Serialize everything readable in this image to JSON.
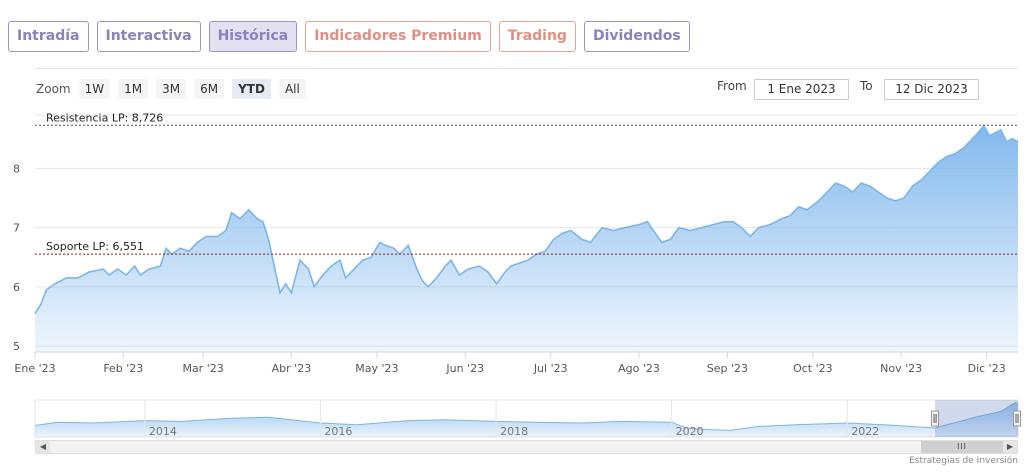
{
  "tabs": [
    {
      "label": "Intradía",
      "name": "tab-intradia",
      "style": "normal"
    },
    {
      "label": "Interactiva",
      "name": "tab-interactiva",
      "style": "normal"
    },
    {
      "label": "Histórica",
      "name": "tab-historica",
      "style": "active"
    },
    {
      "label": "Indicadores Premium",
      "name": "tab-indicadores-premium",
      "style": "premium"
    },
    {
      "label": "Trading",
      "name": "tab-trading",
      "style": "premium"
    },
    {
      "label": "Dividendos",
      "name": "tab-dividendos",
      "style": "normal"
    }
  ],
  "zoom": {
    "label": "Zoom",
    "buttons": [
      "1W",
      "1M",
      "3M",
      "6M",
      "YTD",
      "All"
    ],
    "selected": "YTD"
  },
  "range": {
    "from_label": "From",
    "from_value": "1 Ene 2023",
    "to_label": "To",
    "to_value": "12 Dic 2023"
  },
  "credit": "Estrategias de Inversión",
  "chart_data": {
    "type": "area",
    "x_start": "2023-01-01",
    "x_end": "2023-12-12",
    "ylim": [
      4.9,
      8.9
    ],
    "y_ticks": [
      5,
      6,
      7,
      8
    ],
    "x_tick_labels": [
      {
        "label": "Ene '23",
        "date": "2023-01-01"
      },
      {
        "label": "Feb '23",
        "date": "2023-02-01"
      },
      {
        "label": "Mar '23",
        "date": "2023-03-01"
      },
      {
        "label": "Abr '23",
        "date": "2023-04-01"
      },
      {
        "label": "May '23",
        "date": "2023-05-01"
      },
      {
        "label": "Jun '23",
        "date": "2023-06-01"
      },
      {
        "label": "Jul '23",
        "date": "2023-07-01"
      },
      {
        "label": "Ago '23",
        "date": "2023-08-01"
      },
      {
        "label": "Sep '23",
        "date": "2023-09-01"
      },
      {
        "label": "Oct '23",
        "date": "2023-10-01"
      },
      {
        "label": "Nov '23",
        "date": "2023-11-01"
      },
      {
        "label": "Dic '23",
        "date": "2023-12-01"
      }
    ],
    "grid": true,
    "series": [
      {
        "color": "#7cb5ec",
        "points": [
          [
            "2023-01-01",
            5.55
          ],
          [
            "2023-01-03",
            5.7
          ],
          [
            "2023-01-05",
            5.95
          ],
          [
            "2023-01-08",
            6.05
          ],
          [
            "2023-01-12",
            6.15
          ],
          [
            "2023-01-16",
            6.15
          ],
          [
            "2023-01-20",
            6.25
          ],
          [
            "2023-01-25",
            6.3
          ],
          [
            "2023-01-27",
            6.2
          ],
          [
            "2023-01-30",
            6.3
          ],
          [
            "2023-02-02",
            6.2
          ],
          [
            "2023-02-05",
            6.35
          ],
          [
            "2023-02-07",
            6.2
          ],
          [
            "2023-02-10",
            6.3
          ],
          [
            "2023-02-14",
            6.35
          ],
          [
            "2023-02-16",
            6.65
          ],
          [
            "2023-02-18",
            6.55
          ],
          [
            "2023-02-21",
            6.65
          ],
          [
            "2023-02-24",
            6.6
          ],
          [
            "2023-02-27",
            6.75
          ],
          [
            "2023-03-02",
            6.85
          ],
          [
            "2023-03-06",
            6.85
          ],
          [
            "2023-03-09",
            6.95
          ],
          [
            "2023-03-11",
            7.25
          ],
          [
            "2023-03-14",
            7.15
          ],
          [
            "2023-03-17",
            7.3
          ],
          [
            "2023-03-20",
            7.15
          ],
          [
            "2023-03-22",
            7.1
          ],
          [
            "2023-03-24",
            6.8
          ],
          [
            "2023-03-26",
            6.35
          ],
          [
            "2023-03-28",
            5.9
          ],
          [
            "2023-03-30",
            6.05
          ],
          [
            "2023-04-01",
            5.9
          ],
          [
            "2023-04-04",
            6.45
          ],
          [
            "2023-04-07",
            6.3
          ],
          [
            "2023-04-09",
            6.0
          ],
          [
            "2023-04-12",
            6.2
          ],
          [
            "2023-04-15",
            6.35
          ],
          [
            "2023-04-18",
            6.45
          ],
          [
            "2023-04-20",
            6.15
          ],
          [
            "2023-04-23",
            6.3
          ],
          [
            "2023-04-26",
            6.45
          ],
          [
            "2023-04-29",
            6.5
          ],
          [
            "2023-05-02",
            6.75
          ],
          [
            "2023-05-04",
            6.7
          ],
          [
            "2023-05-07",
            6.65
          ],
          [
            "2023-05-09",
            6.55
          ],
          [
            "2023-05-12",
            6.7
          ],
          [
            "2023-05-15",
            6.3
          ],
          [
            "2023-05-17",
            6.1
          ],
          [
            "2023-05-19",
            6.0
          ],
          [
            "2023-05-22",
            6.15
          ],
          [
            "2023-05-25",
            6.35
          ],
          [
            "2023-05-27",
            6.45
          ],
          [
            "2023-05-30",
            6.2
          ],
          [
            "2023-06-02",
            6.3
          ],
          [
            "2023-06-06",
            6.35
          ],
          [
            "2023-06-09",
            6.25
          ],
          [
            "2023-06-12",
            6.05
          ],
          [
            "2023-06-15",
            6.25
          ],
          [
            "2023-06-17",
            6.35
          ],
          [
            "2023-06-20",
            6.4
          ],
          [
            "2023-06-23",
            6.45
          ],
          [
            "2023-06-26",
            6.55
          ],
          [
            "2023-06-29",
            6.6
          ],
          [
            "2023-07-02",
            6.8
          ],
          [
            "2023-07-05",
            6.9
          ],
          [
            "2023-07-08",
            6.95
          ],
          [
            "2023-07-12",
            6.8
          ],
          [
            "2023-07-15",
            6.75
          ],
          [
            "2023-07-19",
            7.0
          ],
          [
            "2023-07-23",
            6.95
          ],
          [
            "2023-07-27",
            7.0
          ],
          [
            "2023-08-01",
            7.05
          ],
          [
            "2023-08-04",
            7.1
          ],
          [
            "2023-08-06",
            6.95
          ],
          [
            "2023-08-09",
            6.75
          ],
          [
            "2023-08-12",
            6.8
          ],
          [
            "2023-08-15",
            7.0
          ],
          [
            "2023-08-19",
            6.95
          ],
          [
            "2023-08-23",
            7.0
          ],
          [
            "2023-08-27",
            7.05
          ],
          [
            "2023-08-31",
            7.1
          ],
          [
            "2023-09-03",
            7.1
          ],
          [
            "2023-09-06",
            7.0
          ],
          [
            "2023-09-09",
            6.85
          ],
          [
            "2023-09-12",
            7.0
          ],
          [
            "2023-09-16",
            7.05
          ],
          [
            "2023-09-20",
            7.15
          ],
          [
            "2023-09-23",
            7.2
          ],
          [
            "2023-09-26",
            7.35
          ],
          [
            "2023-09-29",
            7.3
          ],
          [
            "2023-10-03",
            7.45
          ],
          [
            "2023-10-06",
            7.6
          ],
          [
            "2023-10-09",
            7.75
          ],
          [
            "2023-10-12",
            7.7
          ],
          [
            "2023-10-15",
            7.6
          ],
          [
            "2023-10-18",
            7.75
          ],
          [
            "2023-10-21",
            7.7
          ],
          [
            "2023-10-24",
            7.6
          ],
          [
            "2023-10-27",
            7.5
          ],
          [
            "2023-10-30",
            7.45
          ],
          [
            "2023-11-02",
            7.5
          ],
          [
            "2023-11-05",
            7.7
          ],
          [
            "2023-11-08",
            7.8
          ],
          [
            "2023-11-11",
            7.95
          ],
          [
            "2023-11-14",
            8.1
          ],
          [
            "2023-11-17",
            8.2
          ],
          [
            "2023-11-20",
            8.25
          ],
          [
            "2023-11-23",
            8.35
          ],
          [
            "2023-11-26",
            8.5
          ],
          [
            "2023-11-28",
            8.6
          ],
          [
            "2023-11-30",
            8.72
          ],
          [
            "2023-12-02",
            8.55
          ],
          [
            "2023-12-04",
            8.6
          ],
          [
            "2023-12-06",
            8.65
          ],
          [
            "2023-12-08",
            8.45
          ],
          [
            "2023-12-10",
            8.5
          ],
          [
            "2023-12-12",
            8.45
          ]
        ]
      }
    ],
    "reference_lines": [
      {
        "label": "Resistencia LP: 8,726",
        "value": 8.726,
        "color": "#555555"
      },
      {
        "label": "Soporte LP: 6,551",
        "value": 6.551,
        "color": "#8b1a1a"
      }
    ],
    "navigator": {
      "year_labels": [
        "2014",
        "2016",
        "2018",
        "2020",
        "2022"
      ],
      "x_start": "2012-10-01",
      "x_end": "2023-12-12",
      "selected_from": "2023-01-01",
      "selected_to": "2023-12-12",
      "points": [
        [
          "2012-10-01",
          5.9
        ],
        [
          "2013-01-01",
          6.3
        ],
        [
          "2013-06-01",
          6.2
        ],
        [
          "2014-01-01",
          6.5
        ],
        [
          "2014-06-01",
          6.4
        ],
        [
          "2015-01-01",
          6.8
        ],
        [
          "2015-06-01",
          6.9
        ],
        [
          "2016-01-01",
          6.2
        ],
        [
          "2016-06-01",
          6.0
        ],
        [
          "2017-01-01",
          6.5
        ],
        [
          "2017-06-01",
          6.6
        ],
        [
          "2018-01-01",
          6.4
        ],
        [
          "2018-06-01",
          6.3
        ],
        [
          "2019-01-01",
          6.2
        ],
        [
          "2019-06-01",
          6.4
        ],
        [
          "2020-01-01",
          6.3
        ],
        [
          "2020-03-01",
          5.6
        ],
        [
          "2020-06-01",
          5.4
        ],
        [
          "2020-09-01",
          5.3
        ],
        [
          "2021-01-01",
          5.8
        ],
        [
          "2021-06-01",
          6.0
        ],
        [
          "2022-01-01",
          6.2
        ],
        [
          "2022-06-01",
          6.0
        ],
        [
          "2023-01-01",
          5.6
        ],
        [
          "2023-04-01",
          6.3
        ],
        [
          "2023-07-01",
          7.0
        ],
        [
          "2023-10-01",
          7.6
        ],
        [
          "2023-12-01",
          8.7
        ],
        [
          "2023-12-12",
          8.5
        ]
      ]
    }
  }
}
